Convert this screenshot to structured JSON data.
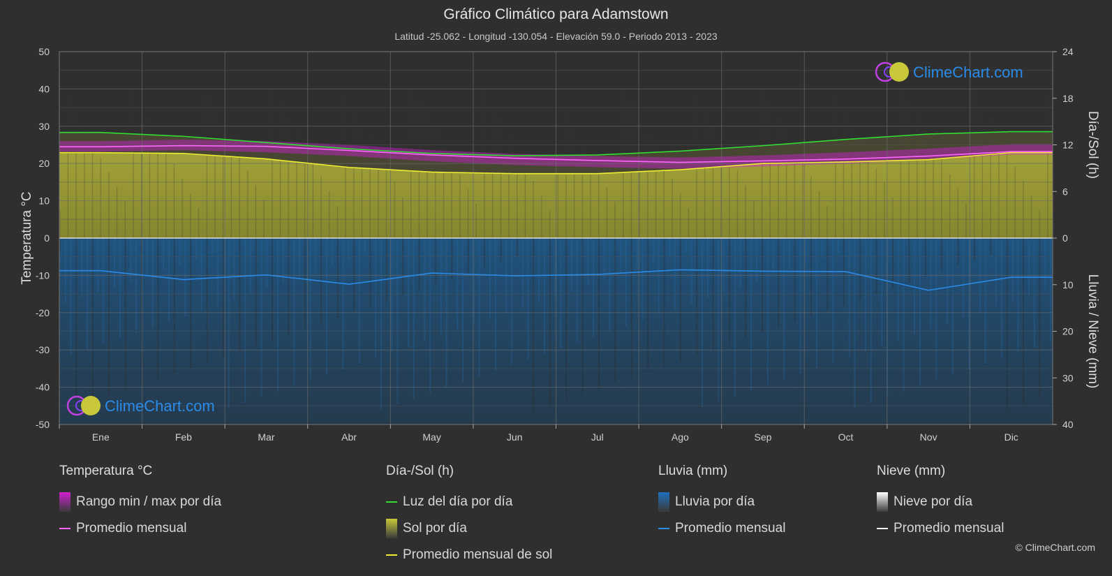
{
  "header": {
    "title": "Gráfico Climático para Adamstown",
    "subtitle": "Latitud -25.062 - Longitud -130.054 - Elevación 59.0 - Periodo 2013 - 2023"
  },
  "watermark": {
    "text": "ClimeChart.com"
  },
  "copyright": "© ClimeChart.com",
  "colors": {
    "background": "#2f2f2f",
    "temp_range": "#d020d0",
    "temp_avg": "#ff66ff",
    "daylight": "#33dd33",
    "sun": "#c8c83a",
    "sun_avg": "#eeee33",
    "rain": "#1f6fbf",
    "rain_avg": "#2a8be8",
    "snow": "#ffffff"
  },
  "legend": {
    "groups": [
      {
        "title": "Temperatura °C",
        "items": [
          {
            "label": "Rango min / max por día",
            "kind": "box",
            "color": "#d020d0"
          },
          {
            "label": "Promedio mensual",
            "kind": "line",
            "color": "#ff66ff"
          }
        ]
      },
      {
        "title": "Día-/Sol (h)",
        "items": [
          {
            "label": "Luz del día por día",
            "kind": "line",
            "color": "#33dd33"
          },
          {
            "label": "Sol por día",
            "kind": "box",
            "color": "#c8c83a"
          },
          {
            "label": "Promedio mensual de sol",
            "kind": "line",
            "color": "#eeee33"
          }
        ]
      },
      {
        "title": "Lluvia (mm)",
        "items": [
          {
            "label": "Lluvia por día",
            "kind": "box",
            "color": "#1f6fbf"
          },
          {
            "label": "Promedio mensual",
            "kind": "line",
            "color": "#2a8be8"
          }
        ]
      },
      {
        "title": "Nieve (mm)",
        "items": [
          {
            "label": "Nieve por día",
            "kind": "box",
            "color": "#ffffff"
          },
          {
            "label": "Promedio mensual",
            "kind": "line",
            "color": "#ffffff"
          }
        ]
      }
    ]
  },
  "chart_data": {
    "type": "area",
    "categories": [
      "Ene",
      "Feb",
      "Mar",
      "Abr",
      "May",
      "Jun",
      "Jul",
      "Ago",
      "Sep",
      "Oct",
      "Nov",
      "Dic"
    ],
    "y_left": {
      "label": "Temperatura °C",
      "ticks": [
        "50",
        "40",
        "30",
        "20",
        "10",
        "0",
        "-10",
        "-20",
        "-30",
        "-40",
        "-50"
      ],
      "range": [
        -50,
        50
      ]
    },
    "y_right_top": {
      "label": "Día-/Sol (h)",
      "ticks": [
        "24",
        "18",
        "12",
        "6",
        "0"
      ],
      "range": [
        0,
        24
      ]
    },
    "y_right_bottom": {
      "label": "Lluvia / Nieve (mm)",
      "ticks": [
        "0",
        "10",
        "20",
        "30",
        "40"
      ],
      "range": [
        0,
        40
      ]
    },
    "grid": true,
    "series": [
      {
        "name": "Rango min / max por día",
        "unit": "°C",
        "min": [
          23.2,
          23.6,
          23.0,
          22.0,
          20.6,
          19.6,
          19.0,
          18.6,
          19.2,
          20.0,
          21.0,
          22.4
        ],
        "max": [
          26.0,
          26.4,
          26.0,
          25.0,
          23.6,
          22.6,
          22.0,
          21.6,
          22.2,
          23.0,
          24.0,
          25.2
        ]
      },
      {
        "name": "Promedio mensual",
        "unit": "°C",
        "values": [
          24.5,
          24.8,
          24.6,
          23.5,
          22.3,
          21.4,
          20.8,
          20.3,
          20.7,
          21.2,
          22.0,
          23.2
        ]
      },
      {
        "name": "Luz del día por día",
        "unit": "h",
        "values": [
          13.6,
          13.1,
          12.3,
          11.5,
          10.9,
          10.6,
          10.7,
          11.2,
          11.9,
          12.7,
          13.4,
          13.7
        ]
      },
      {
        "name": "Sol por día",
        "unit": "h",
        "values": [
          11.0,
          10.9,
          10.2,
          9.1,
          8.5,
          8.3,
          8.3,
          8.8,
          9.6,
          9.8,
          10.1,
          11.0
        ]
      },
      {
        "name": "Promedio mensual de sol",
        "unit": "h",
        "values": [
          11.0,
          10.9,
          10.2,
          9.1,
          8.5,
          8.3,
          8.3,
          8.8,
          9.6,
          9.8,
          10.1,
          11.0
        ]
      },
      {
        "name": "Promedio mensual",
        "unit": "mm",
        "values": [
          7.0,
          8.9,
          7.9,
          9.9,
          7.5,
          8.1,
          7.8,
          6.8,
          7.1,
          7.2,
          11.2,
          8.4
        ]
      }
    ]
  }
}
